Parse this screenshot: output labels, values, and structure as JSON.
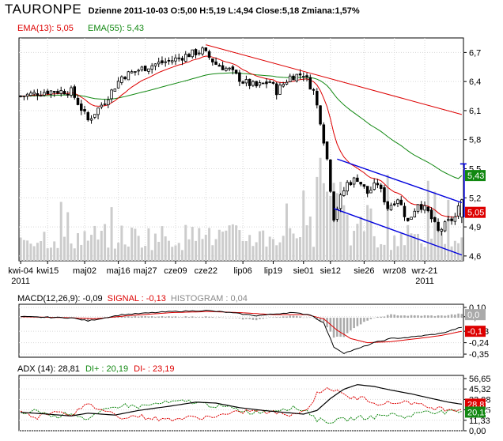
{
  "header": {
    "ticker": "TAURONPE",
    "quote": "Dzienne 2011-10-03 O:5,00 H:5,19 L:4,94 Close:5,18 Zmiana:1,57%"
  },
  "colors": {
    "ema13": "#dd0000",
    "ema55": "#118811",
    "trend_red": "#dd0000",
    "channel": "#0000dd",
    "candles": "#000000",
    "volume": "#cccccc",
    "macd": "#000000",
    "signal": "#dd0000",
    "histogram": "#aaaaaa",
    "adx": "#000000",
    "di_plus": "#118811",
    "di_minus": "#dd0000"
  },
  "chart_data": [
    {
      "type": "candlestick",
      "series": [
        {
          "name": "EMA(13)",
          "label": "EMA(13): 5,05",
          "last": 5.05
        },
        {
          "name": "EMA(55)",
          "label": "EMA(55): 5,43",
          "last": 5.43
        }
      ],
      "y_ticks": [
        "6,7",
        "6,4",
        "6,1",
        "5,8",
        "5,5",
        "5,2",
        "4,9",
        "4,6"
      ],
      "y_tick_values": [
        6.7,
        6.4,
        6.1,
        5.8,
        5.5,
        5.2,
        4.9,
        4.6
      ],
      "ylim": [
        4.55,
        6.85
      ],
      "x_ticks": [
        "kwi-04",
        "kwi15",
        "maj02",
        "maj16",
        "maj27",
        "cze09",
        "cze22",
        "lip06",
        "lip19",
        "sie01",
        "sie12",
        "sie26",
        "wrz08",
        "wrz-21"
      ],
      "x_tick_positions": [
        0,
        8,
        19,
        29,
        37,
        46,
        55,
        66,
        75,
        84,
        92,
        102,
        111,
        120
      ],
      "x_sublabels": [
        {
          "text": "2011",
          "at": 0
        },
        {
          "text": "2011",
          "at": 120
        }
      ],
      "bars": 132,
      "last": {
        "open": 5.0,
        "high": 5.19,
        "low": 4.94,
        "close": 5.18
      },
      "badges": [
        {
          "text": "5,43",
          "value": 5.43,
          "color": "#118811"
        },
        {
          "text": "5,05",
          "value": 5.05,
          "color": "#dd0000"
        }
      ],
      "anchors": [
        [
          0,
          6.25
        ],
        [
          8,
          6.3
        ],
        [
          15,
          6.3
        ],
        [
          20,
          6.0
        ],
        [
          25,
          6.2
        ],
        [
          30,
          6.45
        ],
        [
          35,
          6.52
        ],
        [
          40,
          6.58
        ],
        [
          45,
          6.62
        ],
        [
          50,
          6.68
        ],
        [
          54,
          6.72
        ],
        [
          58,
          6.58
        ],
        [
          62,
          6.52
        ],
        [
          66,
          6.4
        ],
        [
          70,
          6.35
        ],
        [
          74,
          6.4
        ],
        [
          76,
          6.3
        ],
        [
          80,
          6.45
        ],
        [
          84,
          6.48
        ],
        [
          87,
          6.3
        ],
        [
          89,
          6.0
        ],
        [
          91,
          5.6
        ],
        [
          93,
          5.0
        ],
        [
          95,
          5.2
        ],
        [
          97,
          5.35
        ],
        [
          100,
          5.4
        ],
        [
          103,
          5.25
        ],
        [
          106,
          5.35
        ],
        [
          109,
          5.1
        ],
        [
          112,
          5.2
        ],
        [
          115,
          4.95
        ],
        [
          118,
          5.15
        ],
        [
          121,
          5.05
        ],
        [
          124,
          4.85
        ],
        [
          127,
          4.95
        ],
        [
          129,
          5.0
        ],
        [
          131,
          5.18
        ]
      ],
      "red_trendline": [
        [
          55,
          6.78
        ],
        [
          131,
          6.06
        ]
      ],
      "channel_upper": [
        [
          94,
          5.6
        ],
        [
          131,
          5.15
        ]
      ],
      "channel_lower": [
        [
          93,
          5.09
        ],
        [
          131,
          4.61
        ]
      ]
    },
    {
      "type": "line",
      "title": "MACD(12,26,9): -0,09",
      "signal_label": "SIGNAL : -0,13",
      "histogram_label": "HISTOGRAM : 0,04",
      "y_ticks": [
        "0,10",
        "0,01",
        "-0,13",
        "-0,24",
        "-0,35"
      ],
      "y_tick_values": [
        0.1,
        0.01,
        -0.13,
        -0.24,
        -0.35
      ],
      "ylim": [
        -0.38,
        0.13
      ],
      "badges": [
        {
          "text": "0,0",
          "value": 0.03,
          "color": "#aaaaaa"
        },
        {
          "text": "-0,1",
          "value": -0.13,
          "color": "#dd0000"
        }
      ],
      "macd_anchors": [
        [
          0,
          0.01
        ],
        [
          15,
          0.0
        ],
        [
          20,
          -0.03
        ],
        [
          30,
          0.03
        ],
        [
          45,
          0.06
        ],
        [
          55,
          0.07
        ],
        [
          62,
          0.05
        ],
        [
          70,
          0.02
        ],
        [
          80,
          0.05
        ],
        [
          86,
          0.03
        ],
        [
          90,
          -0.05
        ],
        [
          93,
          -0.28
        ],
        [
          96,
          -0.34
        ],
        [
          100,
          -0.3
        ],
        [
          105,
          -0.24
        ],
        [
          110,
          -0.2
        ],
        [
          115,
          -0.19
        ],
        [
          120,
          -0.17
        ],
        [
          125,
          -0.15
        ],
        [
          131,
          -0.09
        ]
      ],
      "signal_anchors": [
        [
          0,
          0.01
        ],
        [
          15,
          0.0
        ],
        [
          22,
          -0.01
        ],
        [
          32,
          0.02
        ],
        [
          45,
          0.05
        ],
        [
          56,
          0.06
        ],
        [
          65,
          0.05
        ],
        [
          75,
          0.03
        ],
        [
          85,
          0.03
        ],
        [
          90,
          -0.01
        ],
        [
          94,
          -0.12
        ],
        [
          98,
          -0.2
        ],
        [
          103,
          -0.24
        ],
        [
          110,
          -0.23
        ],
        [
          118,
          -0.2
        ],
        [
          125,
          -0.17
        ],
        [
          131,
          -0.13
        ]
      ]
    },
    {
      "type": "line",
      "title": "ADX (14): 28,81",
      "di_plus_label": "DI+ : 20,19",
      "di_minus_label": "DI- : 23,19",
      "y_ticks": [
        "56,65",
        "45,32",
        "33,98",
        "22,65",
        "11,33",
        "0,00"
      ],
      "y_tick_values": [
        56.65,
        45.32,
        33.98,
        22.65,
        11.33,
        0.0
      ],
      "ylim": [
        0,
        60
      ],
      "badges": [
        {
          "text": "28,81",
          "value": 28.81,
          "color": "#dd0000"
        },
        {
          "text": "20,19",
          "value": 20.19,
          "color": "#118811"
        }
      ],
      "adx_anchors": [
        [
          0,
          20
        ],
        [
          8,
          18
        ],
        [
          15,
          16
        ],
        [
          20,
          19
        ],
        [
          28,
          17
        ],
        [
          35,
          22
        ],
        [
          45,
          27
        ],
        [
          52,
          31
        ],
        [
          58,
          30
        ],
        [
          65,
          25
        ],
        [
          72,
          22
        ],
        [
          78,
          20
        ],
        [
          84,
          18
        ],
        [
          88,
          22
        ],
        [
          92,
          35
        ],
        [
          96,
          45
        ],
        [
          100,
          50
        ],
        [
          105,
          48
        ],
        [
          110,
          44
        ],
        [
          116,
          40
        ],
        [
          122,
          35
        ],
        [
          127,
          31
        ],
        [
          131,
          28.8
        ]
      ],
      "di_plus_anchors": [
        [
          0,
          18
        ],
        [
          5,
          22
        ],
        [
          10,
          15
        ],
        [
          15,
          20
        ],
        [
          20,
          12
        ],
        [
          25,
          22
        ],
        [
          30,
          28
        ],
        [
          35,
          26
        ],
        [
          42,
          30
        ],
        [
          50,
          32
        ],
        [
          56,
          28
        ],
        [
          62,
          25
        ],
        [
          68,
          20
        ],
        [
          74,
          22
        ],
        [
          80,
          25
        ],
        [
          85,
          22
        ],
        [
          88,
          12
        ],
        [
          92,
          10
        ],
        [
          96,
          12
        ],
        [
          100,
          14
        ],
        [
          105,
          15
        ],
        [
          110,
          18
        ],
        [
          115,
          15
        ],
        [
          120,
          22
        ],
        [
          125,
          20
        ],
        [
          131,
          20.2
        ]
      ],
      "di_minus_anchors": [
        [
          0,
          20
        ],
        [
          5,
          15
        ],
        [
          10,
          22
        ],
        [
          15,
          18
        ],
        [
          20,
          28
        ],
        [
          25,
          22
        ],
        [
          30,
          15
        ],
        [
          35,
          16
        ],
        [
          42,
          12
        ],
        [
          50,
          14
        ],
        [
          56,
          15
        ],
        [
          62,
          18
        ],
        [
          68,
          22
        ],
        [
          74,
          20
        ],
        [
          80,
          18
        ],
        [
          85,
          22
        ],
        [
          88,
          40
        ],
        [
          91,
          48
        ],
        [
          94,
          42
        ],
        [
          98,
          36
        ],
        [
          102,
          35
        ],
        [
          106,
          30
        ],
        [
          110,
          30
        ],
        [
          115,
          32
        ],
        [
          120,
          26
        ],
        [
          125,
          24
        ],
        [
          131,
          23.2
        ]
      ]
    }
  ]
}
